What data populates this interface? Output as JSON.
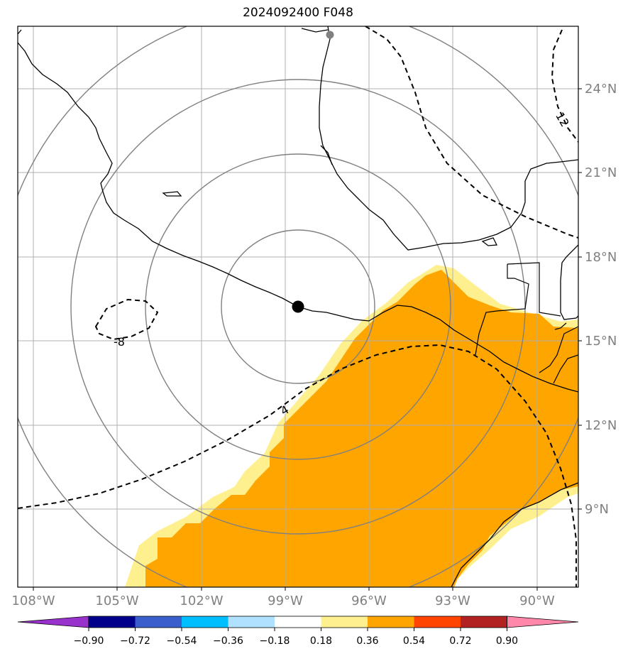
{
  "title": "2024092400 F048",
  "axes": {
    "lon_labels": [
      "108°W",
      "105°W",
      "102°W",
      "99°W",
      "96°W",
      "93°W",
      "90°W"
    ],
    "lat_labels": [
      "24°N",
      "21°N",
      "18°N",
      "15°N",
      "12°N",
      "9°N"
    ],
    "lon_values": [
      -108,
      -105,
      -102,
      -99,
      -96,
      -93,
      -90
    ],
    "lat_values": [
      24,
      21,
      18,
      15,
      12,
      9
    ],
    "lon_range": [
      -108.5,
      -88.5
    ],
    "lat_range": [
      6.2,
      26.2
    ]
  },
  "center_marker": {
    "lon": -98.6,
    "lat": 16.2,
    "color": "#000000"
  },
  "secondary_marker": {
    "lon": -97.5,
    "lat": 25.9,
    "color": "#808080"
  },
  "range_rings_radius_deg": [
    2.7,
    5.4,
    8.1,
    10.8
  ],
  "contours": [
    {
      "label": "-8"
    },
    {
      "label": "4"
    },
    {
      "label": "12"
    }
  ],
  "colorbar": {
    "labels": [
      "−0.90",
      "−0.72",
      "−0.54",
      "−0.36",
      "−0.18",
      "0.18",
      "0.36",
      "0.54",
      "0.72",
      "0.90"
    ],
    "colors": [
      "#9932cc",
      "#00008b",
      "#3a5fcd",
      "#00bfff",
      "#b0e2ff",
      "#ffffff",
      "#fff08f",
      "#ffa500",
      "#ff4500",
      "#b22222",
      "#ff88aa"
    ]
  },
  "field_colors": {
    "pale": "#fff08f",
    "fill": "#ffa500"
  }
}
